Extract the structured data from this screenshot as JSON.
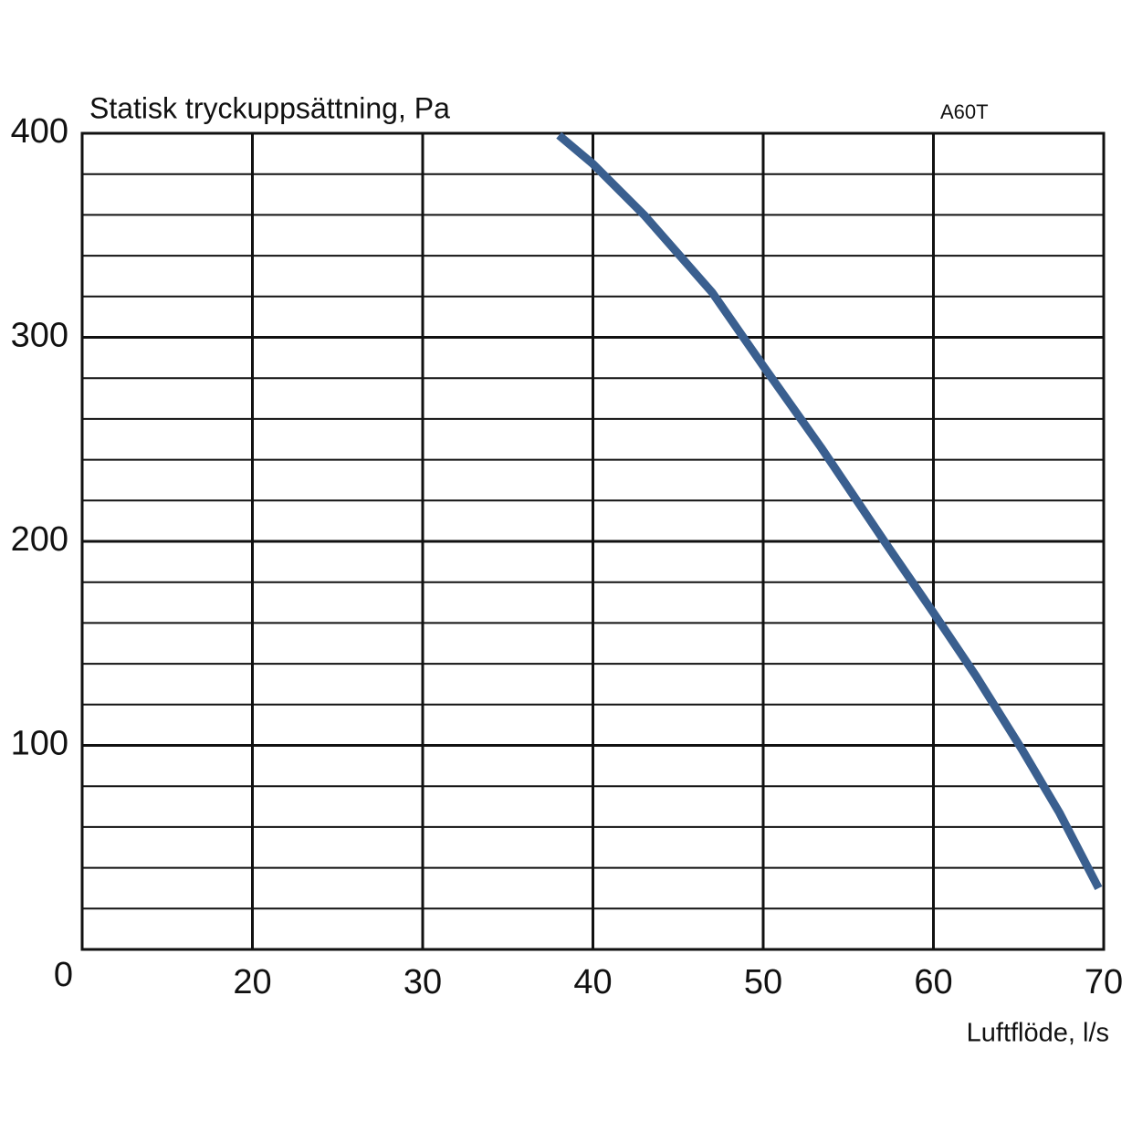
{
  "chart_data": {
    "type": "line",
    "y_label": "Statisk tryckuppsättning, Pa",
    "x_label": "Luftflöde, l/s",
    "annotation": "A60T",
    "x": [
      38.0,
      40.0,
      43.0,
      47.0,
      50.0,
      53.4,
      57.2,
      60.0,
      62.5,
      65.2,
      67.4,
      69.7
    ],
    "series": [
      {
        "name": "A60T",
        "color": "#3a5f8f",
        "values": [
          399,
          385,
          360,
          322,
          286,
          246,
          199,
          165,
          134,
          98,
          67,
          30
        ]
      }
    ],
    "xlim": [
      10,
      70
    ],
    "xticks": [
      20,
      30,
      40,
      50,
      60,
      70
    ],
    "ylim": [
      0,
      400
    ],
    "yticks": [
      0,
      100,
      200,
      300,
      400
    ],
    "minor_yticks": [
      20,
      40,
      60,
      80,
      120,
      140,
      160,
      180,
      220,
      240,
      260,
      280,
      320,
      340,
      360,
      380
    ],
    "grid": true
  }
}
